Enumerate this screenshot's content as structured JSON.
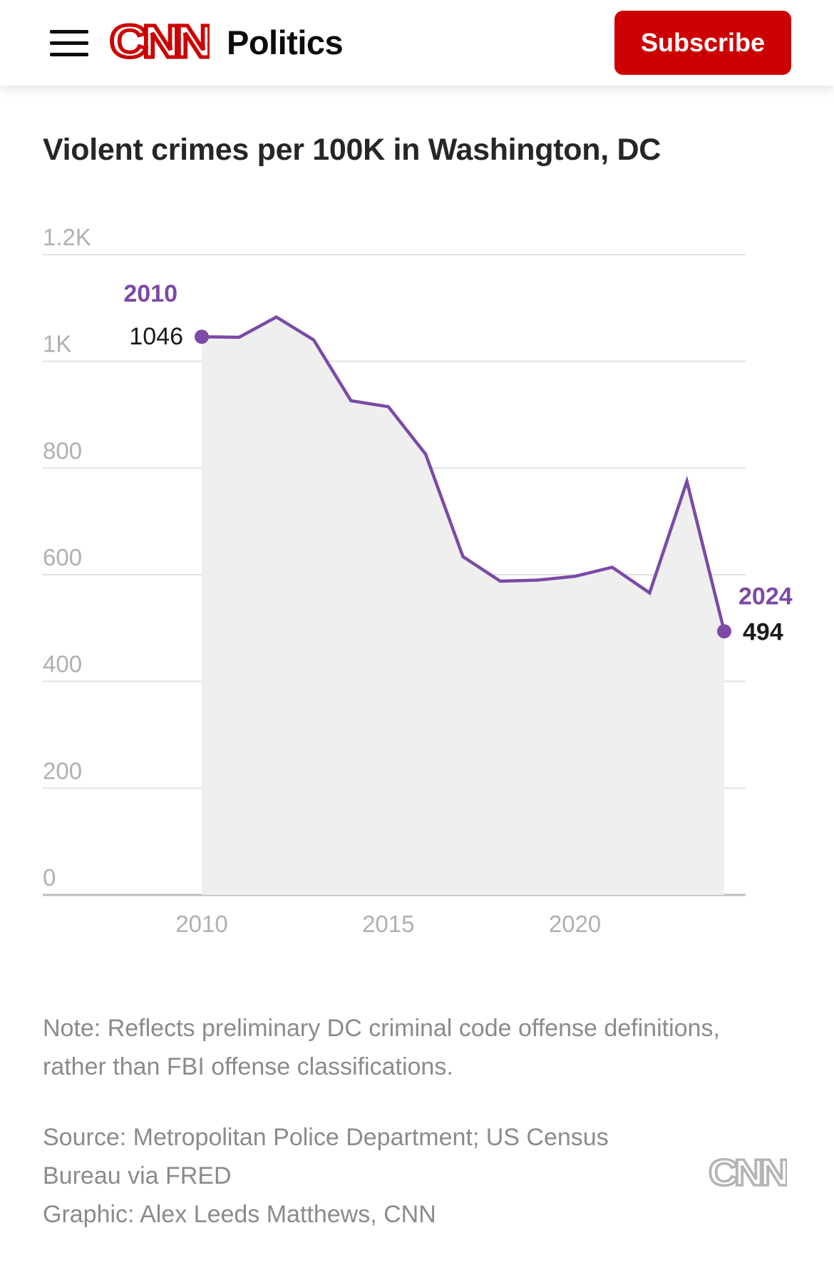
{
  "header": {
    "section_title": "Politics",
    "subscribe_label": "Subscribe",
    "logo_text": "CNN",
    "brand_color": "#cc0000",
    "menu_icon": "hamburger-menu-icon"
  },
  "chart_title": "Violent crimes per 100K in Washington, DC",
  "chart_data": {
    "type": "area",
    "title": "Violent crimes per 100K in Washington, DC",
    "xlabel": "",
    "ylabel": "",
    "x": [
      2010,
      2011,
      2012,
      2013,
      2014,
      2015,
      2016,
      2017,
      2018,
      2019,
      2020,
      2021,
      2022,
      2023,
      2024
    ],
    "values": [
      1046,
      1045,
      1083,
      1040,
      926,
      915,
      826,
      634,
      588,
      590,
      597,
      614,
      566,
      775,
      494
    ],
    "xlim": [
      2010,
      2024
    ],
    "ylim": [
      0,
      1200
    ],
    "y_ticks": [
      "0",
      "200",
      "400",
      "600",
      "800",
      "1K",
      "1.2K"
    ],
    "x_ticks": [
      "2010",
      "2015",
      "2020"
    ],
    "grid": true,
    "annotations": [
      {
        "year_label": "2010",
        "value_label": "1046"
      },
      {
        "year_label": "2024",
        "value_label": "494"
      }
    ],
    "line_color": "#7b4aa6",
    "fill_color": "#efefef"
  },
  "note": "Note: Reflects preliminary DC criminal code offense definitions, rather than FBI offense classifications.",
  "source_lines": [
    "Source: Metropolitan Police Department; US Census",
    "Bureau via FRED",
    "Graphic: Alex Leeds Matthews, CNN"
  ],
  "watermark_text": "CNN"
}
